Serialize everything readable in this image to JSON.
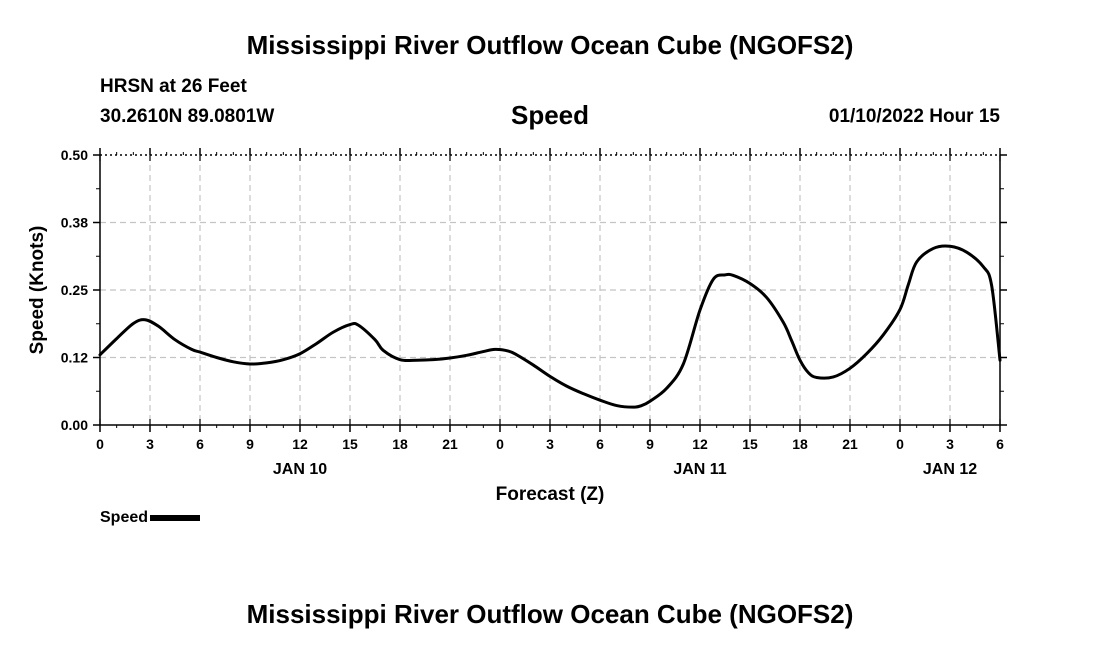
{
  "header": {
    "title": "Mississippi River Outflow Ocean Cube (NGOFS2)",
    "station": "HRSN at 26 Feet",
    "coordinates": "30.2610N  89.0801W",
    "chart_title": "Speed",
    "datetime": "01/10/2022 Hour 15"
  },
  "footer": {
    "title": "Mississippi River Outflow Ocean Cube (NGOFS2)"
  },
  "legend": {
    "label": "Speed",
    "line_color": "#000000"
  },
  "chart_data": {
    "type": "line",
    "title": "Speed",
    "xlabel": "Forecast (Z)",
    "ylabel": "Speed (Knots)",
    "ylim": [
      0,
      0.5
    ],
    "yticks": [
      "0.00",
      "0.12",
      "0.25",
      "0.38",
      "0.50"
    ],
    "xlim": [
      0,
      54
    ],
    "xticks": [
      "0",
      "3",
      "6",
      "9",
      "12",
      "15",
      "18",
      "21",
      "0",
      "3",
      "6",
      "9",
      "12",
      "15",
      "18",
      "21",
      "0",
      "3",
      "6"
    ],
    "date_labels": [
      {
        "label": "JAN 10",
        "at_hour": 12
      },
      {
        "label": "JAN 11",
        "at_hour": 36
      },
      {
        "label": "JAN 12",
        "at_hour": 51
      }
    ],
    "grid": true,
    "series": [
      {
        "name": "Speed",
        "color": "#000000",
        "x": [
          0,
          1,
          2,
          2.7,
          3.5,
          4.5,
          5.5,
          6,
          7,
          8,
          9,
          10,
          11,
          12,
          13,
          14,
          15,
          15.5,
          16.5,
          17,
          18,
          19,
          20,
          21,
          22,
          23,
          23.7,
          24.5,
          25,
          26,
          27,
          28,
          29,
          30,
          31,
          32,
          32.5,
          33,
          34,
          35,
          36,
          36.8,
          37.5,
          38,
          39,
          40,
          41,
          41.5,
          42,
          42.5,
          43,
          44,
          45,
          46,
          47,
          48,
          48.5,
          49,
          50,
          51,
          52,
          53,
          53.5,
          54
        ],
        "y": [
          0.13,
          0.16,
          0.188,
          0.195,
          0.183,
          0.158,
          0.14,
          0.135,
          0.125,
          0.117,
          0.113,
          0.115,
          0.121,
          0.132,
          0.151,
          0.172,
          0.186,
          0.185,
          0.158,
          0.138,
          0.121,
          0.12,
          0.121,
          0.124,
          0.129,
          0.136,
          0.14,
          0.137,
          0.13,
          0.111,
          0.09,
          0.072,
          0.058,
          0.046,
          0.036,
          0.033,
          0.036,
          0.044,
          0.068,
          0.113,
          0.213,
          0.27,
          0.278,
          0.277,
          0.262,
          0.236,
          0.19,
          0.156,
          0.12,
          0.097,
          0.088,
          0.089,
          0.105,
          0.132,
          0.167,
          0.214,
          0.26,
          0.302,
          0.327,
          0.331,
          0.32,
          0.293,
          0.258,
          0.12
        ]
      }
    ]
  }
}
